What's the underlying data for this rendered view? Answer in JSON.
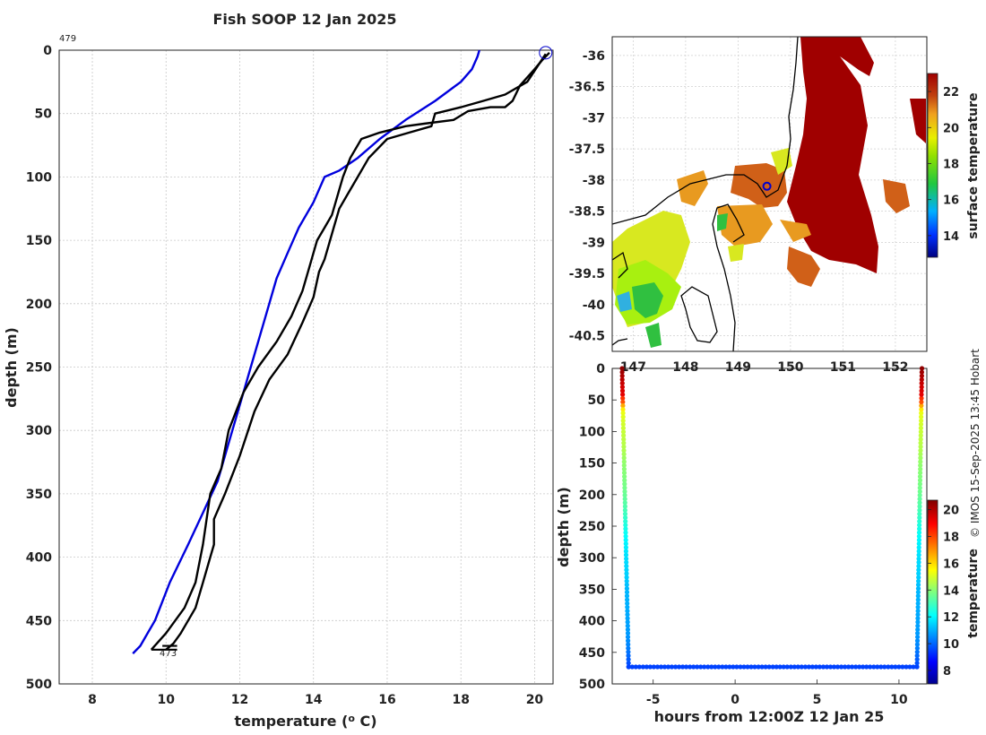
{
  "figure_title": "Fish SOOP 12 Jan 2025",
  "credit": "© IMOS 15-Sep-2025 13:45 Hobart",
  "chart_data": [
    {
      "type": "line",
      "name": "temperature-depth profile",
      "xlabel": "temperature (° C)",
      "ylabel": "depth (m)",
      "xlim": [
        7.1,
        20.5
      ],
      "ylim": [
        0,
        500
      ],
      "y_reversed": true,
      "xticks": [
        8,
        10,
        12,
        14,
        16,
        18,
        20
      ],
      "yticks": [
        0,
        50,
        100,
        150,
        200,
        250,
        300,
        350,
        400,
        450,
        500
      ],
      "grid": true,
      "annotations": [
        {
          "text": "479",
          "x": 7.1,
          "y": -12
        },
        {
          "text": "473",
          "x": 10.0,
          "y": 473
        }
      ],
      "marker": {
        "shape": "circle",
        "x": 20.3,
        "y": 2,
        "color": "#0000cc"
      },
      "series": [
        {
          "name": "climatology",
          "color": "#0000dd",
          "x": [
            18.5,
            18.45,
            18.3,
            18.0,
            17.3,
            16.5,
            15.8,
            15.2,
            14.7,
            14.3,
            14.0,
            13.6,
            13.3,
            13.0,
            12.8,
            12.55,
            12.3,
            12.0,
            11.7,
            11.4,
            11.0,
            10.6,
            10.1,
            9.7,
            9.5,
            9.3,
            9.1
          ],
          "y": [
            0,
            5,
            15,
            25,
            40,
            55,
            70,
            85,
            95,
            100,
            120,
            140,
            160,
            180,
            200,
            225,
            250,
            280,
            310,
            340,
            365,
            390,
            420,
            450,
            460,
            470,
            476
          ]
        },
        {
          "name": "downcast",
          "color": "#000000",
          "x": [
            20.4,
            20.2,
            20.0,
            19.6,
            19.4,
            19.2,
            18.8,
            18.2,
            17.8,
            17.0,
            16.5,
            15.8,
            15.3,
            15.0,
            14.8,
            14.6,
            14.5,
            14.3,
            14.1,
            14.0,
            13.9,
            13.7,
            13.4,
            13.0,
            12.5,
            12.1,
            11.7,
            11.5,
            11.2,
            11.1,
            11.0,
            10.8,
            10.5,
            10.0,
            9.6
          ],
          "y": [
            2,
            8,
            15,
            28,
            40,
            45,
            45,
            48,
            55,
            58,
            60,
            65,
            70,
            85,
            100,
            120,
            130,
            140,
            150,
            160,
            170,
            190,
            210,
            230,
            250,
            270,
            300,
            330,
            350,
            370,
            390,
            420,
            440,
            460,
            473
          ]
        },
        {
          "name": "upcast",
          "color": "#000000",
          "x": [
            20.3,
            19.8,
            19.2,
            18.6,
            18.0,
            17.3,
            17.2,
            16.6,
            16.0,
            15.5,
            15.2,
            14.9,
            14.7,
            14.55,
            14.4,
            14.3,
            14.15,
            14.0,
            13.7,
            13.3,
            12.8,
            12.4,
            12.0,
            11.6,
            11.3,
            11.3,
            11.2,
            11.0,
            10.8,
            10.6,
            10.4,
            10.2,
            10.0
          ],
          "y": [
            3,
            25,
            35,
            40,
            45,
            50,
            60,
            65,
            70,
            85,
            100,
            115,
            125,
            140,
            155,
            165,
            175,
            195,
            215,
            240,
            260,
            285,
            320,
            350,
            370,
            390,
            400,
            420,
            440,
            450,
            460,
            468,
            473
          ]
        }
      ]
    },
    {
      "type": "heatmap",
      "name": "surface temperature map",
      "xticks": [
        147,
        148,
        149,
        150,
        151,
        152
      ],
      "yticks": [
        -36,
        -36.5,
        -37,
        -37.5,
        -38,
        -38.5,
        -39,
        -39.5,
        -40,
        -40.5
      ],
      "xlim": [
        146.6,
        152.6
      ],
      "ylim": [
        -40.75,
        -35.7
      ],
      "marker": {
        "shape": "circle",
        "x": 149.55,
        "y": -38.1,
        "color": "#0000cc"
      },
      "colorbar": {
        "label": "surface temperature",
        "ticks": [
          14,
          16,
          18,
          20,
          22
        ],
        "range": [
          12.8,
          23.0
        ]
      }
    },
    {
      "type": "scatter",
      "name": "depth vs time",
      "xlabel": "hours from 12:00Z 12 Jan 25",
      "ylabel": "depth (m)",
      "xlim": [
        -7.5,
        11.7
      ],
      "ylim": [
        0,
        500
      ],
      "y_reversed": true,
      "xticks": [
        -5,
        0,
        5,
        10
      ],
      "yticks": [
        0,
        50,
        100,
        150,
        200,
        250,
        300,
        350,
        400,
        450,
        500
      ],
      "series": [
        {
          "name": "down",
          "x": [
            -6.9,
            -6.5
          ],
          "y": [
            0,
            473
          ]
        },
        {
          "name": "bottom",
          "x": [
            -6.5,
            11.1
          ],
          "y": [
            473,
            473
          ]
        },
        {
          "name": "up",
          "x": [
            11.1,
            11.4
          ],
          "y": [
            473,
            0
          ]
        }
      ],
      "colorbar": {
        "label": "temperature",
        "ticks": [
          8,
          10,
          12,
          14,
          16,
          18,
          20
        ],
        "range": [
          7.0,
          20.7
        ]
      }
    }
  ]
}
